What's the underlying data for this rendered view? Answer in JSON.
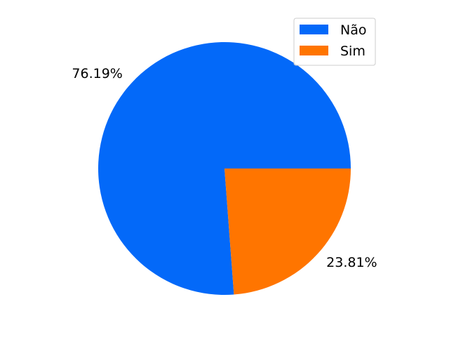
{
  "chart_data": {
    "type": "pie",
    "slices": [
      {
        "label": "Não",
        "value": 76.19,
        "color": "#0369f9"
      },
      {
        "label": "Sim",
        "value": 23.81,
        "color": "#ff7500"
      }
    ],
    "start_angle_deg": 0,
    "direction": "counterclockwise",
    "legend": {
      "position": "top-right",
      "entries": [
        "Não",
        "Sim"
      ]
    }
  }
}
